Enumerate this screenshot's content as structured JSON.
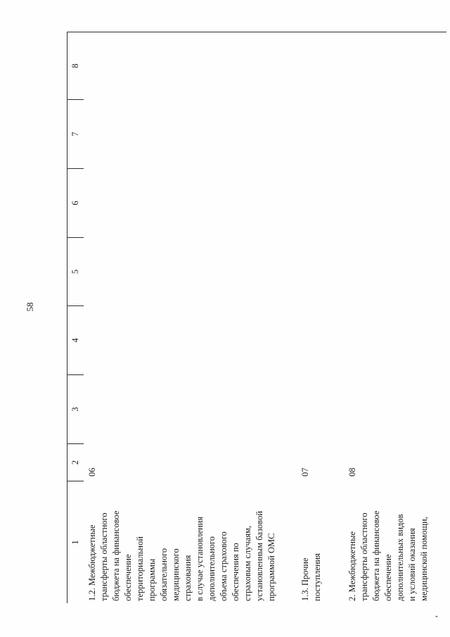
{
  "page": {
    "number": "58"
  },
  "table": {
    "header_columns": [
      "1",
      "2",
      "3",
      "4",
      "5",
      "6",
      "7",
      "8"
    ],
    "rows": [
      {
        "name": "1.2. Межбюджетные\nтрансферты областного\nбюджета на финансовое\nобеспечение\nтерриториальной\nпрограммы\nобязательного\nмедицинского\nстрахования\nв случае установления\nдополнительного\nобъема страхового\nобеспечения по\nстраховым случаям,\nустановленным базовой\nпрограммой ОМС",
        "code": "06"
      },
      {
        "name": "1.3. Прочие\nпоступления",
        "code": "07"
      },
      {
        "name": "2. Межбюджетные\nтрансферты областного\nбюджета на финансовое\nобеспечение\nдополнительных видов\nи условий оказания\nмедицинской помощи,",
        "code": "08"
      }
    ]
  },
  "artifact": "’"
}
